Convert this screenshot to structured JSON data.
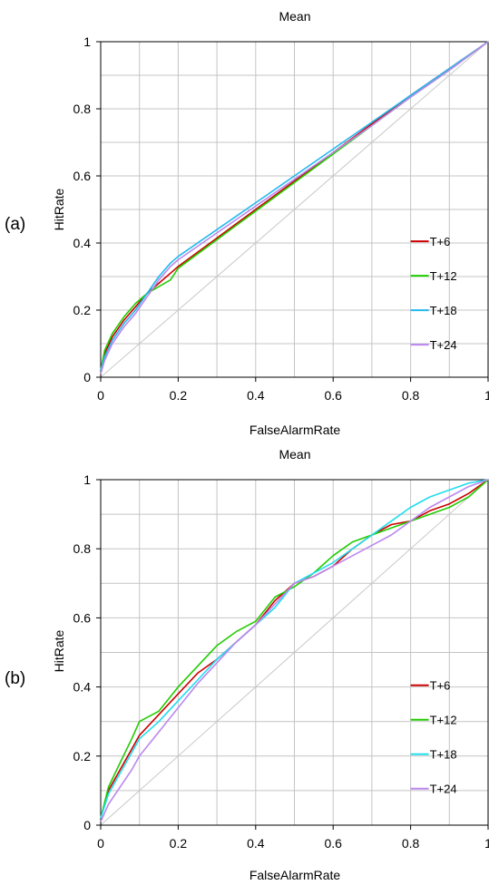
{
  "chart_data": [
    {
      "panel_label": "(a)",
      "type": "line",
      "title": "Mean",
      "xlabel": "FalseAlarmRate",
      "ylabel": "HitRate",
      "xlim": [
        0,
        1
      ],
      "ylim": [
        0,
        1
      ],
      "xticks": [
        "0",
        "0.2",
        "0.4",
        "0.6",
        "0.8",
        "1"
      ],
      "yticks": [
        "0",
        "0.2",
        "0.4",
        "0.6",
        "0.8",
        "1"
      ],
      "grid": true,
      "legend_position": "bottom-right",
      "reference_line": {
        "x": [
          0,
          1
        ],
        "y": [
          0,
          1
        ],
        "color": "#c8c8c8"
      },
      "series": [
        {
          "name": "T+6",
          "color": "#cc0000",
          "x": [
            0,
            0.01,
            0.03,
            0.06,
            0.09,
            0.12,
            0.15,
            0.18,
            0.2,
            0.3,
            0.4,
            0.5,
            0.6,
            0.7,
            0.8,
            0.9,
            1.0
          ],
          "y": [
            0.02,
            0.07,
            0.12,
            0.17,
            0.21,
            0.25,
            0.28,
            0.31,
            0.33,
            0.415,
            0.5,
            0.585,
            0.67,
            0.755,
            0.84,
            0.92,
            1.0
          ]
        },
        {
          "name": "T+12",
          "color": "#22cc00",
          "x": [
            0,
            0.01,
            0.03,
            0.06,
            0.09,
            0.12,
            0.15,
            0.18,
            0.2,
            0.3,
            0.4,
            0.5,
            0.6,
            0.7,
            0.8,
            0.9,
            1.0
          ],
          "y": [
            0.02,
            0.08,
            0.13,
            0.18,
            0.22,
            0.25,
            0.27,
            0.29,
            0.325,
            0.41,
            0.495,
            0.58,
            0.665,
            0.75,
            0.835,
            0.915,
            1.0
          ]
        },
        {
          "name": "T+18",
          "color": "#22b8ee",
          "x": [
            0,
            0.01,
            0.03,
            0.06,
            0.09,
            0.12,
            0.15,
            0.18,
            0.2,
            0.3,
            0.4,
            0.5,
            0.6,
            0.7,
            0.8,
            0.9,
            1.0
          ],
          "y": [
            0.02,
            0.06,
            0.11,
            0.16,
            0.2,
            0.25,
            0.3,
            0.34,
            0.36,
            0.44,
            0.52,
            0.6,
            0.68,
            0.76,
            0.84,
            0.92,
            1.0
          ]
        },
        {
          "name": "T+24",
          "color": "#bb88ee",
          "x": [
            0,
            0.01,
            0.03,
            0.06,
            0.09,
            0.12,
            0.15,
            0.18,
            0.2,
            0.3,
            0.4,
            0.5,
            0.6,
            0.7,
            0.8,
            0.9,
            1.0
          ],
          "y": [
            0.01,
            0.05,
            0.1,
            0.15,
            0.19,
            0.24,
            0.29,
            0.33,
            0.35,
            0.43,
            0.51,
            0.59,
            0.67,
            0.75,
            0.835,
            0.915,
            1.0
          ]
        }
      ]
    },
    {
      "panel_label": "(b)",
      "type": "line",
      "title": "Mean",
      "xlabel": "FalseAlarmRate",
      "ylabel": "HitRate",
      "xlim": [
        0,
        1
      ],
      "ylim": [
        0,
        1
      ],
      "xticks": [
        "0",
        "0.2",
        "0.4",
        "0.6",
        "0.8",
        "1"
      ],
      "yticks": [
        "0",
        "0.2",
        "0.4",
        "0.6",
        "0.8",
        "1"
      ],
      "grid": true,
      "legend_position": "bottom-right",
      "reference_line": {
        "x": [
          0,
          1
        ],
        "y": [
          0,
          1
        ],
        "color": "#c8c8c8"
      },
      "series": [
        {
          "name": "T+6",
          "color": "#cc0000",
          "x": [
            0,
            0.02,
            0.05,
            0.08,
            0.1,
            0.15,
            0.2,
            0.25,
            0.3,
            0.35,
            0.4,
            0.45,
            0.5,
            0.55,
            0.6,
            0.65,
            0.7,
            0.75,
            0.8,
            0.85,
            0.9,
            0.95,
            1.0
          ],
          "y": [
            0.02,
            0.1,
            0.16,
            0.22,
            0.26,
            0.32,
            0.38,
            0.44,
            0.48,
            0.53,
            0.58,
            0.65,
            0.7,
            0.72,
            0.75,
            0.8,
            0.84,
            0.87,
            0.88,
            0.91,
            0.93,
            0.96,
            1.0
          ]
        },
        {
          "name": "T+12",
          "color": "#22cc00",
          "x": [
            0,
            0.02,
            0.05,
            0.08,
            0.1,
            0.15,
            0.2,
            0.25,
            0.3,
            0.35,
            0.4,
            0.45,
            0.5,
            0.55,
            0.6,
            0.65,
            0.7,
            0.75,
            0.8,
            0.85,
            0.9,
            0.95,
            1.0
          ],
          "y": [
            0.02,
            0.11,
            0.18,
            0.25,
            0.3,
            0.33,
            0.4,
            0.46,
            0.52,
            0.56,
            0.59,
            0.66,
            0.69,
            0.73,
            0.78,
            0.82,
            0.84,
            0.86,
            0.88,
            0.9,
            0.92,
            0.95,
            1.0
          ]
        },
        {
          "name": "T+18",
          "color": "#22ddee",
          "x": [
            0,
            0.02,
            0.05,
            0.08,
            0.1,
            0.15,
            0.2,
            0.25,
            0.3,
            0.35,
            0.4,
            0.45,
            0.5,
            0.55,
            0.6,
            0.65,
            0.7,
            0.75,
            0.8,
            0.85,
            0.9,
            0.95,
            1.0
          ],
          "y": [
            0.02,
            0.09,
            0.15,
            0.21,
            0.25,
            0.3,
            0.36,
            0.42,
            0.48,
            0.53,
            0.58,
            0.63,
            0.7,
            0.73,
            0.76,
            0.8,
            0.84,
            0.88,
            0.92,
            0.95,
            0.97,
            0.99,
            1.0
          ]
        },
        {
          "name": "T+24",
          "color": "#bb88ee",
          "x": [
            0,
            0.02,
            0.05,
            0.08,
            0.1,
            0.15,
            0.2,
            0.25,
            0.3,
            0.35,
            0.4,
            0.45,
            0.5,
            0.55,
            0.6,
            0.65,
            0.7,
            0.75,
            0.8,
            0.85,
            0.9,
            0.95,
            1.0
          ],
          "y": [
            0.01,
            0.06,
            0.11,
            0.16,
            0.2,
            0.27,
            0.34,
            0.41,
            0.47,
            0.53,
            0.58,
            0.64,
            0.7,
            0.72,
            0.75,
            0.78,
            0.81,
            0.84,
            0.88,
            0.92,
            0.95,
            0.98,
            1.0
          ]
        }
      ]
    }
  ]
}
